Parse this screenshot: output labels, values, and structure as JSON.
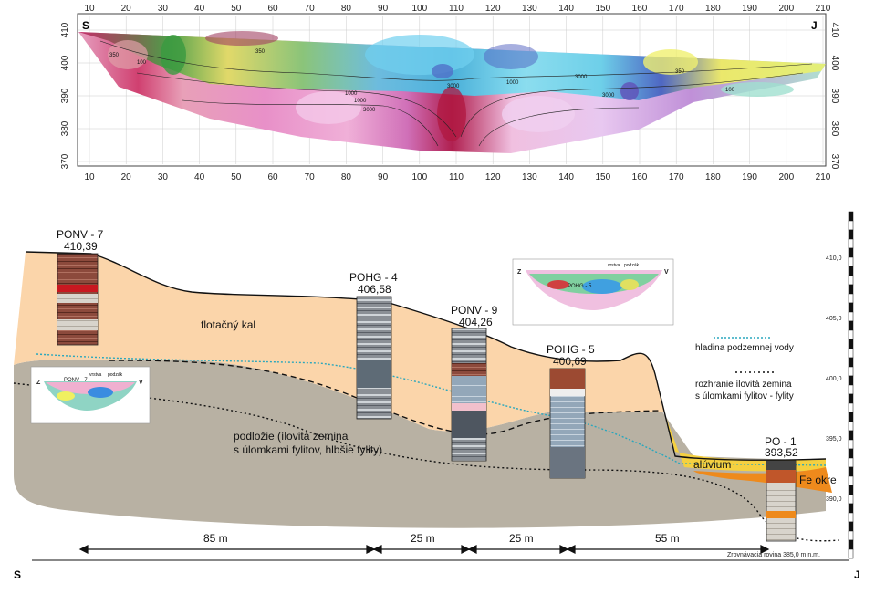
{
  "profile": {
    "left_end": "S",
    "right_end": "J",
    "x_ticks": [
      "10",
      "20",
      "30",
      "40",
      "50",
      "60",
      "70",
      "80",
      "90",
      "100",
      "110",
      "120",
      "130",
      "140",
      "150",
      "160",
      "170",
      "180",
      "190",
      "200",
      "210"
    ],
    "y_ticks": [
      "410",
      "400",
      "390",
      "380",
      "370"
    ],
    "contour_labels": [
      "350",
      "350",
      "1000",
      "1000",
      "3000",
      "3000",
      "1000",
      "3000",
      "3000",
      "100",
      "350",
      "100"
    ]
  },
  "section": {
    "boreholes": [
      {
        "name": "PONV - 7",
        "elev": "410,39"
      },
      {
        "name": "POHG - 4",
        "elev": "406,58"
      },
      {
        "name": "PONV - 9",
        "elev": "404,26"
      },
      {
        "name": "POHG - 5",
        "elev": "400,69"
      },
      {
        "name": "PO - 1",
        "elev": "393,52"
      }
    ],
    "layer_labels": {
      "flotacny": "flotačný kal",
      "podlozie_1": "podložie (ílovitá zemina",
      "podlozie_2": "s úlomkami fylitov, hlbšie fylity)",
      "aluvium": "alúvium",
      "fe_okre": "Fe okre"
    },
    "legend": {
      "water": "hladina podzemnej vody",
      "interface_1": "rozhranie ílovitá zemina",
      "interface_2": "s úlomkami fylitov - fylity"
    },
    "scale_ticks": [
      "410,0",
      "405,0",
      "400,0",
      "395,0",
      "390,0"
    ],
    "distances": [
      "85 m",
      "25 m",
      "25 m",
      "55 m"
    ],
    "datum": "Zrovnávacia rovina 385,0 m n.m.",
    "left_end": "S",
    "right_end": "J",
    "inset_left": {
      "left": "Z",
      "right": "V",
      "name": "PONV - 7",
      "ann1": "vrstva",
      "ann2": "podzák"
    },
    "inset_right": {
      "left": "Z",
      "right": "V",
      "name": "POHG - 5",
      "ann1": "vrstva",
      "ann2": "podzák"
    }
  }
}
